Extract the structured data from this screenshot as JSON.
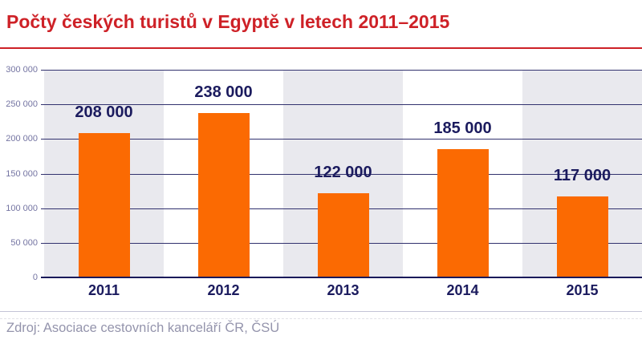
{
  "title": "Počty českých turistů v Egyptě v letech 2011–2015",
  "source": "Zdroj: Asociace cestovních kanceláří ČR, ČSÚ",
  "chart_data": {
    "type": "bar",
    "title": "Počty českých turistů v Egyptě v letech 2011–2015",
    "categories": [
      "2011",
      "2012",
      "2013",
      "2014",
      "2015"
    ],
    "values": [
      208000,
      238000,
      122000,
      185000,
      117000
    ],
    "value_labels": [
      "208 000",
      "238 000",
      "122 000",
      "185 000",
      "117 000"
    ],
    "y_ticks": [
      {
        "value": 300000,
        "label": "300 000"
      },
      {
        "value": 250000,
        "label": "250 000"
      },
      {
        "value": 200000,
        "label": "200 000"
      },
      {
        "value": 150000,
        "label": "150 000"
      },
      {
        "value": 100000,
        "label": "100 000"
      },
      {
        "value": 50000,
        "label": "50 000"
      },
      {
        "value": 0,
        "label": "0"
      }
    ],
    "ylim": [
      0,
      300000
    ],
    "xlabel": "",
    "ylabel": "",
    "grid": true,
    "legend": false,
    "alternating_bands": true,
    "colors": {
      "bar": "#FB6A02",
      "red": "#CE2127",
      "navy": "#1B1B5E",
      "gridline": "#32326E",
      "axis": "#1A1A5A",
      "tick_label": "#7474A2",
      "band_gray": "#E9E9EE",
      "source_text": "#9494AC",
      "separator": "#C3C3D6"
    }
  }
}
